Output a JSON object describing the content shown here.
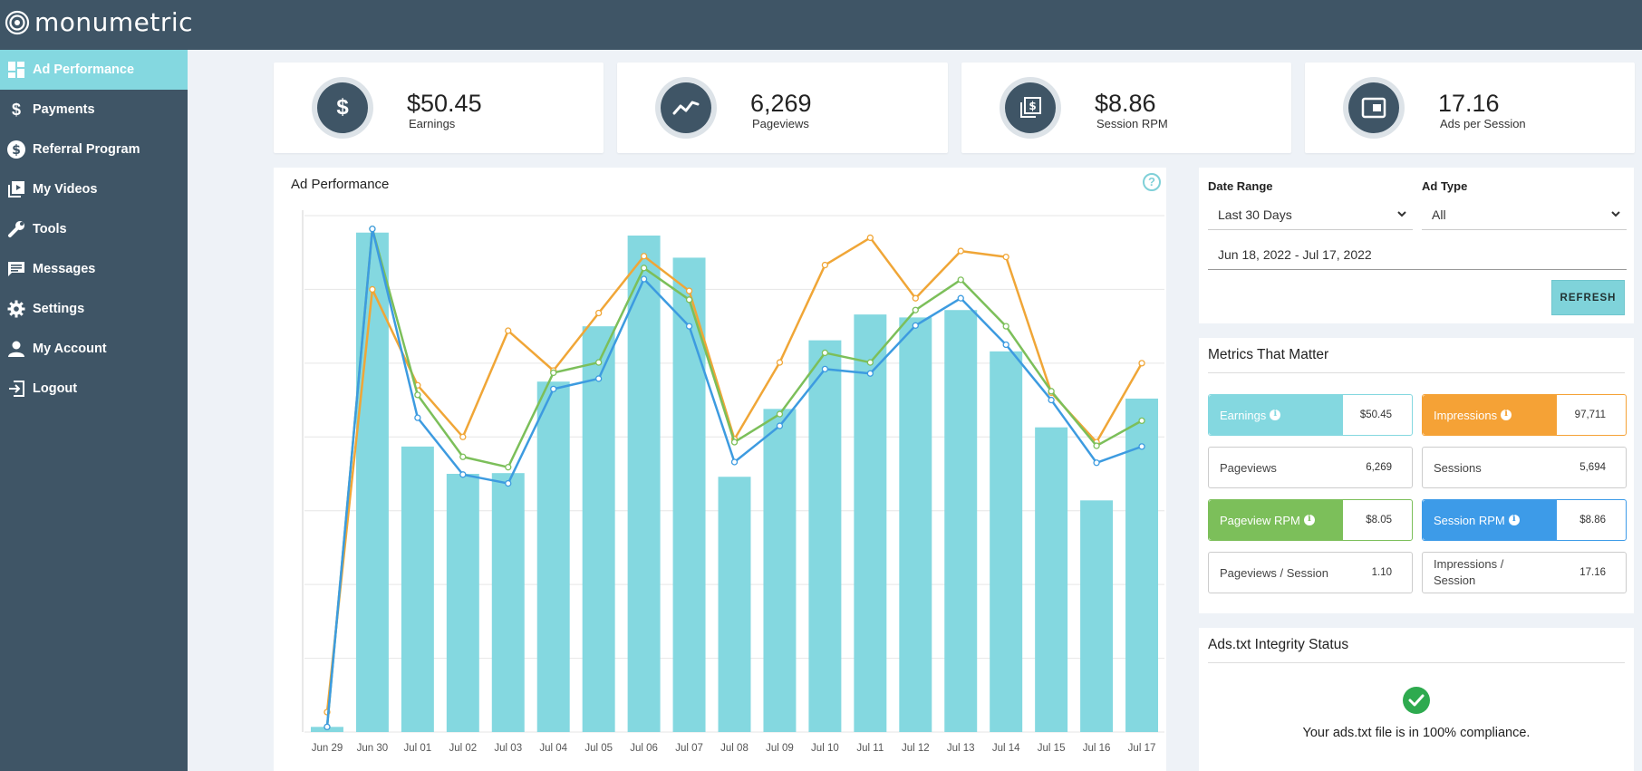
{
  "app": {
    "logo_text": "monumetric"
  },
  "sidebar": {
    "items": [
      {
        "label": "Ad Performance",
        "icon": "dashboard-icon",
        "active": true
      },
      {
        "label": "Payments",
        "icon": "dollar-icon"
      },
      {
        "label": "Referral Program",
        "icon": "dollar-circle-icon"
      },
      {
        "label": "My Videos",
        "icon": "video-library-icon"
      },
      {
        "label": "Tools",
        "icon": "wrench-icon"
      },
      {
        "label": "Messages",
        "icon": "message-icon"
      },
      {
        "label": "Settings",
        "icon": "gear-icon"
      },
      {
        "label": "My Account",
        "icon": "user-icon"
      },
      {
        "label": "Logout",
        "icon": "logout-icon"
      }
    ]
  },
  "stats": [
    {
      "value": "$50.45",
      "label": "Earnings",
      "icon": "dollar-icon"
    },
    {
      "value": "6,269",
      "label": "Pageviews",
      "icon": "trend-line-icon"
    },
    {
      "value": "$8.86",
      "label": "Session RPM",
      "icon": "money-stack-icon"
    },
    {
      "value": "17.16",
      "label": "Ads per Session",
      "icon": "ad-frame-icon"
    }
  ],
  "chart_panel": {
    "title": "Ad Performance",
    "help_glyph": "?"
  },
  "chart_data": {
    "type": "bar",
    "categories": [
      "Jun 29",
      "Jun 30",
      "Jul 01",
      "Jul 02",
      "Jul 03",
      "Jul 04",
      "Jul 05",
      "Jul 06",
      "Jul 07",
      "Jul 08",
      "Jul 09",
      "Jul 10",
      "Jul 11",
      "Jul 12",
      "Jul 13",
      "Jul 14",
      "Jul 15",
      "Jul 16",
      "Jul 17"
    ],
    "title": "",
    "ylim": [
      0,
      7
    ],
    "grid": true,
    "series": [
      {
        "type": "bar",
        "color": "#84d8e0",
        "values": [
          0.07,
          6.77,
          3.87,
          3.5,
          3.51,
          4.75,
          5.5,
          6.73,
          6.43,
          3.46,
          4.38,
          5.31,
          5.66,
          5.62,
          5.72,
          5.16,
          4.13,
          3.14,
          4.52
        ]
      },
      {
        "type": "line",
        "color": "#f0a637",
        "values": [
          0.27,
          6.0,
          4.7,
          4.0,
          5.44,
          4.9,
          5.68,
          6.45,
          5.98,
          3.97,
          5.01,
          6.33,
          6.7,
          5.88,
          6.52,
          6.44,
          4.6,
          3.93,
          5.0
        ]
      },
      {
        "type": "line",
        "color": "#7cbf5a",
        "values": [
          0.07,
          6.82,
          4.57,
          3.73,
          3.59,
          4.87,
          5.01,
          6.29,
          5.86,
          3.93,
          4.31,
          5.14,
          5.01,
          5.72,
          6.13,
          5.5,
          4.62,
          3.88,
          4.22
        ]
      },
      {
        "type": "line",
        "color": "#3d9be0",
        "values": [
          0.07,
          6.82,
          4.26,
          3.49,
          3.37,
          4.65,
          4.79,
          6.14,
          5.5,
          3.66,
          4.15,
          4.92,
          4.86,
          5.51,
          5.88,
          5.25,
          4.5,
          3.65,
          3.87
        ]
      }
    ]
  },
  "filters": {
    "date_range_label": "Date Range",
    "date_range_value": "Last 30 Days",
    "ad_type_label": "Ad Type",
    "ad_type_value": "All",
    "date_text": "Jun 18, 2022 - Jul 17, 2022",
    "refresh_label": "REFRESH"
  },
  "metrics": {
    "title": "Metrics That Matter",
    "items": [
      {
        "name": "Earnings",
        "value": "$50.45",
        "color": "#84d8e0",
        "info": true
      },
      {
        "name": "Impressions",
        "value": "97,711",
        "color": "#f5a236",
        "info": true
      },
      {
        "name": "Pageviews",
        "value": "6,269"
      },
      {
        "name": "Sessions",
        "value": "5,694"
      },
      {
        "name": "Pageview RPM",
        "value": "$8.05",
        "color": "#7cbf5a",
        "info": true
      },
      {
        "name": "Session RPM",
        "value": "$8.86",
        "color": "#3d9be8",
        "info": true
      },
      {
        "name": "Pageviews / Session",
        "value": "1.10"
      },
      {
        "name": "Impressions / Session",
        "value": "17.16"
      }
    ]
  },
  "ads_txt": {
    "title": "Ads.txt Integrity Status",
    "message": "Your ads.txt file is in 100% compliance."
  }
}
